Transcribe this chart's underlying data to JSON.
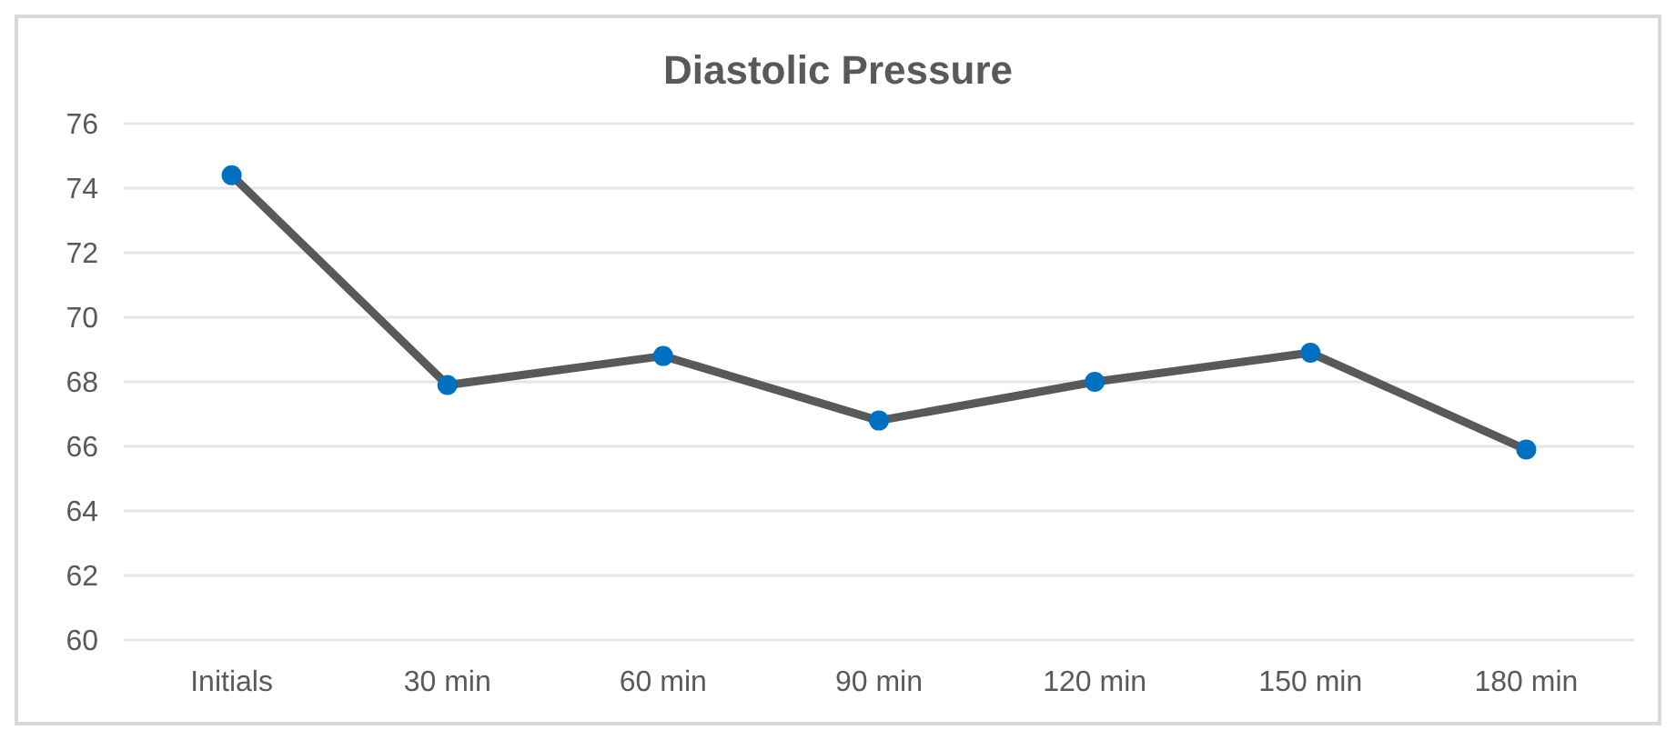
{
  "chart_data": {
    "type": "line",
    "title": "Diastolic Pressure",
    "categories": [
      "Initials",
      "30 min",
      "60 min",
      "90 min",
      "120 min",
      "150 min",
      "180 min"
    ],
    "series": [
      {
        "color": "#595959",
        "values": [
          74.4,
          67.9,
          68.8,
          66.8,
          68,
          68.9,
          65.9
        ]
      }
    ],
    "marker": "circle",
    "line_style": "solid",
    "ylim": [
      60,
      76
    ],
    "yticks": [
      60,
      62,
      64,
      66,
      68,
      70,
      72,
      74,
      76
    ],
    "grid": "y"
  }
}
